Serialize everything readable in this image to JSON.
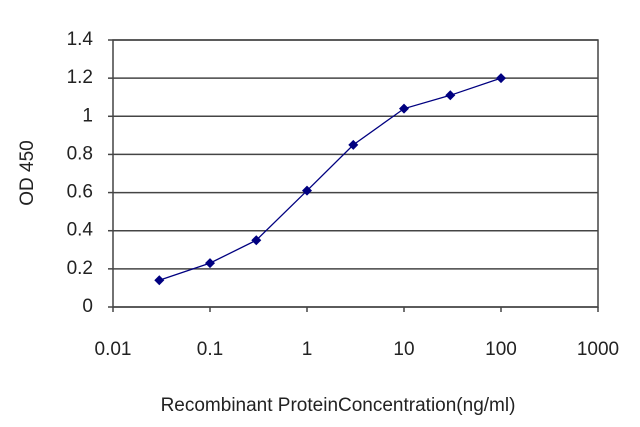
{
  "chart_data": {
    "type": "line",
    "x_label": "Recombinant ProteinConcentration(ng/ml)",
    "y_label": "OD 450",
    "x": [
      0.03,
      0.1,
      0.3,
      1,
      3,
      10,
      30,
      100
    ],
    "series": [
      {
        "color": "#000080",
        "values": [
          0.14,
          0.23,
          0.35,
          0.61,
          0.85,
          1.04,
          1.11,
          1.2
        ]
      }
    ],
    "xscale": "log",
    "xlim": [
      0.01,
      1000
    ],
    "xticks": [
      0.01,
      0.1,
      1,
      10,
      100,
      1000
    ],
    "ylim": [
      0,
      1.4
    ],
    "yticks": [
      0,
      0.2,
      0.4,
      0.6,
      0.8,
      1,
      1.2,
      1.4
    ],
    "grid": true
  }
}
